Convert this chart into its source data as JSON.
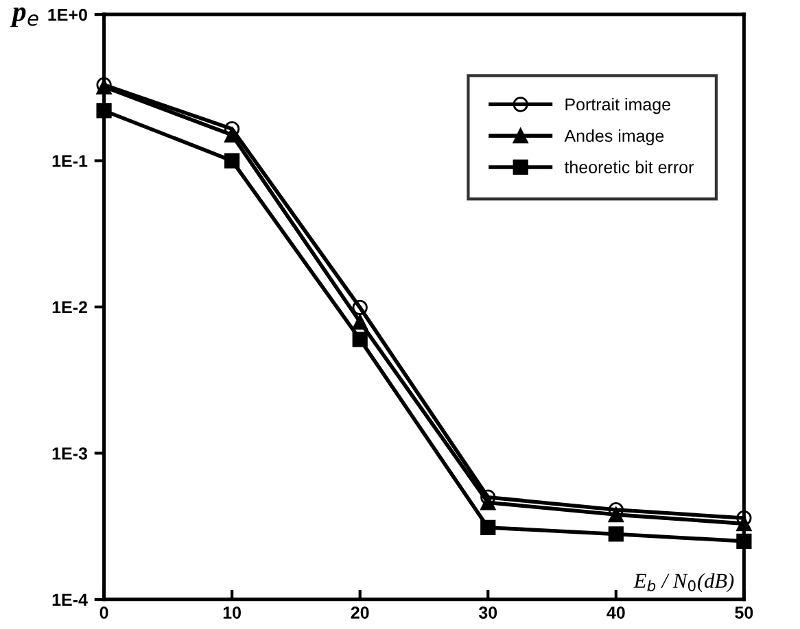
{
  "chart_data": {
    "type": "line",
    "xlabel": "E$_{b}$ / N$_{0}$(dB)",
    "ylabel": "p$_{e}$",
    "x": [
      0,
      10,
      20,
      30,
      40,
      50
    ],
    "series": [
      {
        "name": "Portrait image",
        "color": "#000000",
        "marker": "circle",
        "values": [
          0.33,
          0.165,
          0.0099,
          0.0005,
          0.00041,
          0.00036
        ]
      },
      {
        "name": "Andes image",
        "color": "#000000",
        "marker": "triangle",
        "values": [
          0.32,
          0.15,
          0.0079,
          0.00046,
          0.00038,
          0.00033
        ]
      },
      {
        "name": "theoretic bit error",
        "color": "#000000",
        "marker": "square",
        "values": [
          0.22,
          0.1,
          0.006,
          0.00031,
          0.00028,
          0.00025
        ]
      }
    ],
    "log": "y",
    "xlim": [
      0,
      50
    ],
    "xticks": [
      0,
      10,
      20,
      30,
      40,
      50
    ],
    "ylim": [
      0.0001,
      1
    ],
    "yticks": [
      {
        "value": 0.0001,
        "label": "1E-4"
      },
      {
        "value": 0.001,
        "label": "1E-3"
      },
      {
        "value": 0.01,
        "label": "1E-2"
      },
      {
        "value": 0.1,
        "label": "1E-1"
      },
      {
        "value": 1,
        "label": "1E+0"
      }
    ],
    "grid": false,
    "legend": "top right",
    "line_style": "solid"
  }
}
